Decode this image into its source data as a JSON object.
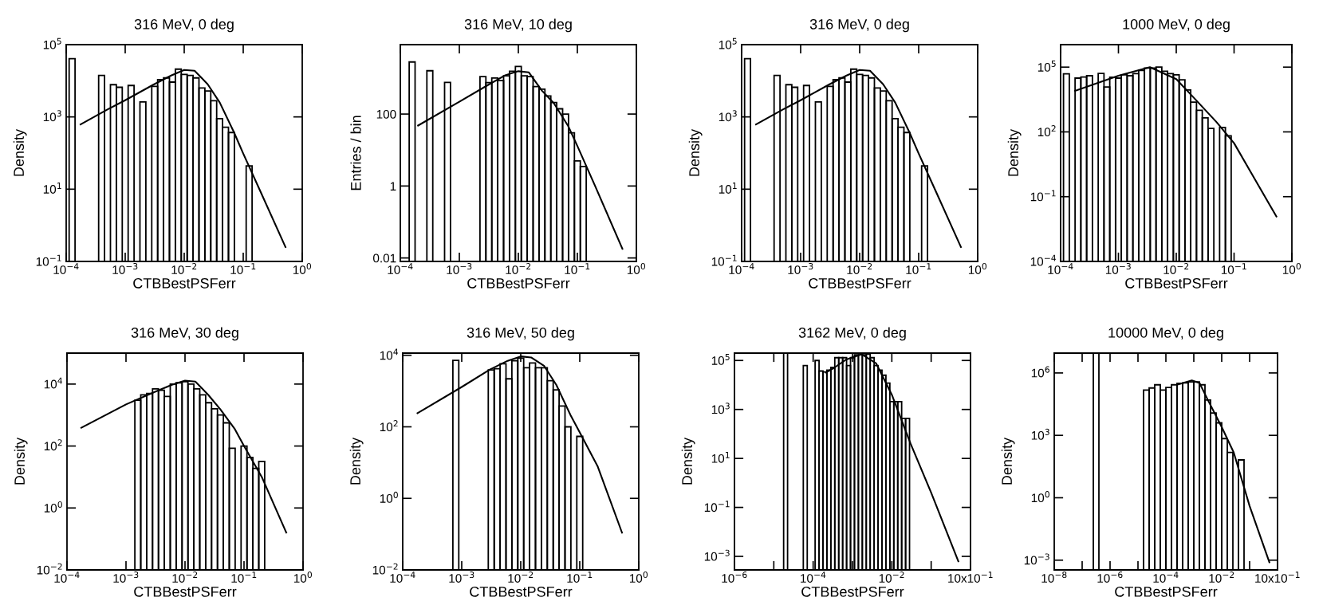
{
  "chart_data": [
    {
      "type": "histogram",
      "title": "316 MeV, 0 deg",
      "xlabel": "CTBBestPSFerr",
      "ylabel": "Density",
      "log": "xy",
      "grid": false,
      "color": "#000000",
      "xlim": [
        0.0001,
        1
      ],
      "ylim": [
        0.1,
        100000
      ],
      "xticks": [
        {
          "value": 0.0001,
          "label": "10$^{−4}$"
        },
        {
          "value": 0.001,
          "label": "10$^{−3}$"
        },
        {
          "value": 0.01,
          "label": "10$^{−2}$"
        },
        {
          "value": 0.1,
          "label": "10$^{−1}$"
        },
        {
          "value": 1,
          "label": "10$^{0}$"
        }
      ],
      "yticks": [
        {
          "value": 0.1,
          "label": "10$^{−1}$"
        },
        {
          "value": 10,
          "label": "10$^{1}$"
        },
        {
          "value": 1000,
          "label": "10$^{3}$"
        },
        {
          "value": 100000,
          "label": "10$^{5}$"
        }
      ],
      "bins": [
        0.0001122,
        0.0001413,
        0.0001778,
        0.0002239,
        0.0002818,
        0.0003548,
        0.0004467,
        0.0005623,
        0.0007079,
        0.0008913,
        0.001122,
        0.001413,
        0.001778,
        0.002239,
        0.002818,
        0.003548,
        0.004467,
        0.005623,
        0.007079,
        0.008913,
        0.01122,
        0.01413,
        0.01778,
        0.02239,
        0.02818,
        0.03548,
        0.04467,
        0.05623,
        0.07079,
        0.08913,
        0.1122,
        0.1413
      ],
      "values": [
        41000,
        null,
        null,
        null,
        null,
        14000,
        null,
        7800,
        6600,
        null,
        7400,
        null,
        2600,
        null,
        7000,
        10700,
        12000,
        9200,
        21000,
        15000,
        14000,
        12000,
        6300,
        5200,
        2800,
        890,
        520,
        370,
        null,
        null,
        44
      ],
      "series": [
        {
          "type": "line",
          "color": "#000000",
          "x": [
            0.000175,
            0.0005,
            0.001,
            0.003,
            0.006,
            0.01,
            0.015,
            0.025,
            0.04,
            0.07,
            0.1,
            0.2,
            0.52
          ],
          "values": [
            620,
            1600,
            2900,
            7800,
            14000,
            20000,
            19000,
            8000,
            2500,
            370,
            97,
            8,
            0.25
          ]
        }
      ]
    },
    {
      "type": "histogram",
      "title": "316 MeV, 10 deg",
      "xlabel": "CTBBestPSFerr",
      "ylabel": "Entries / bin",
      "log": "xy",
      "grid": false,
      "color": "#000000",
      "xlim": [
        0.0001,
        1
      ],
      "ylim": [
        0.008,
        8500
      ],
      "xticks": [
        {
          "value": 0.0001,
          "label": "10$^{−4}$"
        },
        {
          "value": 0.001,
          "label": "10$^{−3}$"
        },
        {
          "value": 0.01,
          "label": "10$^{−2}$"
        },
        {
          "value": 0.1,
          "label": "10$^{−1}$"
        },
        {
          "value": 1,
          "label": "10$^{0}$"
        }
      ],
      "yticks": [
        0.01,
        1,
        100
      ],
      "bins": [
        0.0001413,
        0.0001778,
        0.0002239,
        0.0002818,
        0.0003548,
        0.0004467,
        0.0005623,
        0.0007079,
        0.0008913,
        0.001122,
        0.001413,
        0.001778,
        0.002239,
        0.002818,
        0.003548,
        0.004467,
        0.005623,
        0.007079,
        0.008913,
        0.01122,
        0.01413,
        0.01778,
        0.02239,
        0.02818,
        0.03548,
        0.04467,
        0.05623,
        0.07079,
        0.08913,
        0.1122,
        0.1413
      ],
      "values": [
        2800,
        null,
        null,
        1600,
        null,
        null,
        760,
        null,
        null,
        null,
        null,
        null,
        1100,
        750,
        1000,
        850,
        1150,
        1550,
        2100,
        1150,
        1100,
        580,
        490,
        320,
        210,
        140,
        100,
        30,
        5,
        3.5
      ],
      "series": [
        {
          "type": "line",
          "color": "#000000",
          "x": [
            0.0002,
            0.001,
            0.003,
            0.006,
            0.01,
            0.015,
            0.025,
            0.04,
            0.07,
            0.1,
            0.2,
            0.58
          ],
          "values": [
            48,
            220,
            630,
            1200,
            1550,
            1450,
            450,
            200,
            46,
            13,
            1,
            0.018
          ]
        }
      ]
    },
    {
      "type": "histogram",
      "title": "316 MeV, 0 deg",
      "xlabel": "CTBBestPSFerr",
      "ylabel": "Density",
      "log": "xy",
      "grid": false,
      "color": "#000000",
      "xlim": [
        0.0001,
        1
      ],
      "ylim": [
        0.1,
        100000
      ],
      "xticks": [
        {
          "value": 0.0001,
          "label": "10$^{−4}$"
        },
        {
          "value": 0.001,
          "label": "10$^{−3}$"
        },
        {
          "value": 0.01,
          "label": "10$^{−2}$"
        },
        {
          "value": 0.1,
          "label": "10$^{−1}$"
        },
        {
          "value": 1,
          "label": "10$^{0}$"
        }
      ],
      "yticks": [
        {
          "value": 0.1,
          "label": "10$^{−1}$"
        },
        {
          "value": 10,
          "label": "10$^{1}$"
        },
        {
          "value": 1000,
          "label": "10$^{3}$"
        },
        {
          "value": 100000,
          "label": "10$^{5}$"
        }
      ],
      "bins": [
        0.0001122,
        0.0001413,
        0.0001778,
        0.0002239,
        0.0002818,
        0.0003548,
        0.0004467,
        0.0005623,
        0.0007079,
        0.0008913,
        0.001122,
        0.001413,
        0.001778,
        0.002239,
        0.002818,
        0.003548,
        0.004467,
        0.005623,
        0.007079,
        0.008913,
        0.01122,
        0.01413,
        0.01778,
        0.02239,
        0.02818,
        0.03548,
        0.04467,
        0.05623,
        0.07079,
        0.08913,
        0.1122,
        0.1413
      ],
      "values": [
        41000,
        null,
        null,
        null,
        null,
        14000,
        null,
        7800,
        6600,
        null,
        7400,
        null,
        2600,
        null,
        7000,
        10700,
        12000,
        9200,
        21000,
        15000,
        14000,
        12000,
        6300,
        5200,
        2800,
        890,
        520,
        370,
        null,
        null,
        44
      ],
      "series": [
        {
          "type": "line",
          "color": "#000000",
          "x": [
            0.000175,
            0.0005,
            0.001,
            0.003,
            0.006,
            0.01,
            0.015,
            0.025,
            0.04,
            0.07,
            0.1,
            0.2,
            0.52
          ],
          "values": [
            620,
            1600,
            2900,
            7800,
            14000,
            20000,
            19000,
            8000,
            2500,
            370,
            97,
            8,
            0.25
          ]
        }
      ]
    },
    {
      "type": "histogram",
      "title": "1000 MeV, 0 deg",
      "xlabel": "CTBBestPSFerr",
      "ylabel": "Density",
      "log": "xy",
      "grid": false,
      "color": "#000000",
      "xlim": [
        0.0001,
        1
      ],
      "ylim": [
        0.0001,
        1100000
      ],
      "xticks": [
        {
          "value": 0.0001,
          "label": "10$^{−4}$"
        },
        {
          "value": 0.001,
          "label": "10$^{−3}$"
        },
        {
          "value": 0.01,
          "label": "10$^{−2}$"
        },
        {
          "value": 0.1,
          "label": "10$^{−1}$"
        },
        {
          "value": 1,
          "label": "10$^{0}$"
        }
      ],
      "yticks": [
        {
          "value": 0.0001,
          "label": "10$^{−4}$"
        },
        {
          "value": 0.1,
          "label": "10$^{−1}$"
        },
        {
          "value": 100,
          "label": "10$^{2}$"
        },
        {
          "value": 100000,
          "label": "10$^{5}$"
        }
      ],
      "bins": [
        0.0001122,
        0.0001413,
        0.0001778,
        0.0002239,
        0.0002818,
        0.0003548,
        0.0004467,
        0.0005623,
        0.0007079,
        0.0008913,
        0.001122,
        0.001413,
        0.001778,
        0.002239,
        0.002818,
        0.003548,
        0.004467,
        0.005623,
        0.007079,
        0.008913,
        0.01122,
        0.01413,
        0.01778,
        0.02239,
        0.02818,
        0.03548,
        0.04467,
        0.05623,
        0.07079,
        0.08913
      ],
      "values": [
        49000,
        null,
        31000,
        35000,
        40000,
        null,
        51000,
        12000,
        34000,
        31000,
        44000,
        40000,
        50000,
        70000,
        90000,
        90000,
        100000,
        64000,
        50000,
        44000,
        26000,
        8700,
        2400,
        1000,
        450,
        145,
        null,
        160,
        66
      ],
      "series": [
        {
          "type": "line",
          "color": "#000000",
          "x": [
            0.000178,
            0.001,
            0.0035,
            0.01,
            0.02,
            0.05,
            0.1,
            0.2,
            0.54
          ],
          "values": [
            8000,
            40000,
            100000,
            28000,
            3900,
            280,
            30,
            1.2,
            0.012
          ]
        }
      ]
    },
    {
      "type": "histogram",
      "title": "316 MeV, 30 deg",
      "xlabel": "CTBBestPSFerr",
      "ylabel": "Density",
      "log": "xy",
      "grid": false,
      "color": "#000000",
      "xlim": [
        0.0001,
        1
      ],
      "ylim": [
        0.01,
        100000
      ],
      "xticks": [
        {
          "value": 0.0001,
          "label": "10$^{−4}$"
        },
        {
          "value": 0.001,
          "label": "10$^{−3}$"
        },
        {
          "value": 0.01,
          "label": "10$^{−2}$"
        },
        {
          "value": 0.1,
          "label": "10$^{−1}$"
        },
        {
          "value": 1,
          "label": "10$^{0}$"
        }
      ],
      "yticks": [
        {
          "value": 0.01,
          "label": "10$^{−2}$"
        },
        {
          "value": 1,
          "label": "10$^{0}$"
        },
        {
          "value": 100,
          "label": "10$^{2}$"
        },
        {
          "value": 10000,
          "label": "10$^{4}$"
        }
      ],
      "bins": [
        0.001413,
        0.001778,
        0.002239,
        0.002818,
        0.003548,
        0.004467,
        0.005623,
        0.007079,
        0.008913,
        0.01122,
        0.01413,
        0.01778,
        0.02239,
        0.02818,
        0.03548,
        0.04467,
        0.05623,
        0.07079,
        0.08913,
        0.1122,
        0.1413,
        0.1778,
        0.2239
      ],
      "values": [
        3000,
        4500,
        5000,
        7000,
        6300,
        4000,
        10000,
        11000,
        12000,
        10000,
        7000,
        4500,
        2500,
        1600,
        1000,
        560,
        85,
        null,
        100,
        43,
        19,
        32
      ],
      "series": [
        {
          "type": "line",
          "color": "#000000",
          "x": [
            0.000175,
            0.001,
            0.003,
            0.006,
            0.01,
            0.015,
            0.025,
            0.04,
            0.07,
            0.1,
            0.2,
            0.52
          ],
          "values": [
            390,
            2200,
            5500,
            9500,
            13000,
            12000,
            4400,
            1500,
            350,
            100,
            10,
            0.16
          ]
        }
      ]
    },
    {
      "type": "histogram",
      "title": "316 MeV, 50 deg",
      "xlabel": "CTBBestPSFerr",
      "ylabel": "Density",
      "log": "xy",
      "grid": false,
      "color": "#000000",
      "xlim": [
        0.0001,
        1
      ],
      "ylim": [
        0.01,
        11500
      ],
      "xticks": [
        {
          "value": 0.0001,
          "label": "10$^{−4}$"
        },
        {
          "value": 0.001,
          "label": "10$^{−3}$"
        },
        {
          "value": 0.01,
          "label": "10$^{−2}$"
        },
        {
          "value": 0.1,
          "label": "10$^{−1}$"
        },
        {
          "value": 1,
          "label": "10$^{0}$"
        }
      ],
      "yticks": [
        {
          "value": 0.01,
          "label": "10$^{−2}$"
        },
        {
          "value": 1,
          "label": "10$^{0}$"
        },
        {
          "value": 100,
          "label": "10$^{2}$"
        },
        {
          "value": 10000,
          "label": "10$^{4}$"
        }
      ],
      "bins": [
        0.0007079,
        0.0008913,
        0.001122,
        0.001413,
        0.001778,
        0.002239,
        0.002818,
        0.003548,
        0.004467,
        0.005623,
        0.007079,
        0.008913,
        0.01122,
        0.01413,
        0.01778,
        0.02239,
        0.02818,
        0.03548,
        0.04467,
        0.05623,
        0.07079,
        0.08913,
        0.1122
      ],
      "values": [
        7200,
        null,
        null,
        null,
        null,
        null,
        3900,
        4200,
        5800,
        2200,
        7000,
        8300,
        4500,
        6100,
        4500,
        4500,
        1950,
        1080,
        380,
        100,
        null,
        54
      ],
      "series": [
        {
          "type": "line",
          "color": "#000000",
          "x": [
            0.000178,
            0.001,
            0.003,
            0.006,
            0.01,
            0.015,
            0.025,
            0.04,
            0.07,
            0.1,
            0.2,
            0.52
          ],
          "values": [
            240,
            1300,
            4000,
            7000,
            9300,
            8700,
            5000,
            1500,
            210,
            70,
            8,
            0.11
          ]
        }
      ]
    },
    {
      "type": "histogram",
      "title": "3162 MeV, 0 deg",
      "xlabel": "CTBBestPSFerr",
      "ylabel": "Density",
      "log": "xy",
      "grid": false,
      "color": "#000000",
      "xlim": [
        1e-06,
        1
      ],
      "ylim": [
        0.00028,
        200000
      ],
      "xticks": [
        {
          "value": 1e-06,
          "label": "10$^{−6}$"
        },
        {
          "value": 1e-05,
          "label": null
        },
        {
          "value": 0.0001,
          "label": "10$^{−4}$"
        },
        {
          "value": 0.001,
          "label": null
        },
        {
          "value": 0.01,
          "label": "10$^{−2}$"
        },
        {
          "value": 0.1,
          "label": null
        },
        {
          "value": 1,
          "label": "10x10$^{−1}$"
        }
      ],
      "yticks": [
        {
          "value": 0.001,
          "label": "10$^{−3}$"
        },
        {
          "value": 0.1,
          "label": "10$^{−1}$"
        },
        {
          "value": 10,
          "label": "10$^{1}$"
        },
        {
          "value": 1000,
          "label": "10$^{3}$"
        },
        {
          "value": 100000,
          "label": "10$^{5}$"
        }
      ],
      "bins": [
        1.778e-05,
        2.239e-05,
        2.818e-05,
        3.548e-05,
        4.467e-05,
        5.623e-05,
        7.079e-05,
        8.913e-05,
        0.0001122,
        0.0001413,
        0.0001778,
        0.0002239,
        0.0002818,
        0.0003548,
        0.0004467,
        0.0005623,
        0.0007079,
        0.0008913,
        0.001122,
        0.001413,
        0.001778,
        0.002239,
        0.002818,
        0.003548,
        0.004467,
        0.005623,
        0.007079,
        0.008913,
        0.01122,
        0.01413,
        0.01778,
        0.02239,
        0.02818
      ],
      "values": [
        200000,
        null,
        null,
        null,
        null,
        62000,
        null,
        null,
        100000,
        37000,
        34000,
        40000,
        52000,
        130000,
        130000,
        130000,
        62000,
        130000,
        170000,
        170000,
        170000,
        180000,
        130000,
        62000,
        40000,
        25000,
        12000,
        2100,
        2100,
        2100,
        430,
        430
      ],
      "series": [
        {
          "type": "line",
          "color": "#000000",
          "x": [
            0.00021,
            0.00034,
            0.0007,
            0.0017,
            0.004,
            0.01,
            0.03,
            0.1,
            0.49
          ],
          "values": [
            32000,
            50000,
            110000,
            180000,
            76000,
            4000,
            40,
            0.4,
            0.00063
          ]
        }
      ]
    },
    {
      "type": "histogram",
      "title": "10000 MeV, 0 deg",
      "xlabel": "CTBBestPSFerr",
      "ylabel": "Density",
      "log": "xy",
      "grid": false,
      "color": "#000000",
      "xlim": [
        1e-08,
        1
      ],
      "ylim": [
        0.00034,
        9000000
      ],
      "xticks": [
        {
          "value": 1e-08,
          "label": "10$^{−8}$"
        },
        {
          "value": 1e-07,
          "label": null
        },
        {
          "value": 1e-06,
          "label": "10$^{−6}$"
        },
        {
          "value": 1e-05,
          "label": null
        },
        {
          "value": 0.0001,
          "label": "10$^{−4}$"
        },
        {
          "value": 0.001,
          "label": null
        },
        {
          "value": 0.01,
          "label": "10$^{−2}$"
        },
        {
          "value": 0.1,
          "label": null
        },
        {
          "value": 1,
          "label": "10x10$^{−1}$"
        }
      ],
      "yticks": [
        {
          "value": 0.001,
          "label": "10$^{−3}$"
        },
        {
          "value": 1,
          "label": "10$^{0}$"
        },
        {
          "value": 1000,
          "label": "10$^{3}$"
        },
        {
          "value": 1000000,
          "label": "10$^{6}$"
        }
      ],
      "bins": [
        2.512e-07,
        3.981e-07,
        6.31e-07,
        1e-06,
        1.585e-06,
        2.512e-06,
        3.981e-06,
        6.31e-06,
        1e-05,
        1.585e-05,
        2.512e-05,
        3.981e-05,
        6.31e-05,
        0.0001,
        0.0001585,
        0.0002512,
        0.0003981,
        0.000631,
        0.001,
        0.001585,
        0.002512,
        0.003981,
        0.00631,
        0.01,
        0.01585,
        0.02512,
        0.03981,
        0.0631
      ],
      "values": [
        9000000,
        null,
        null,
        null,
        null,
        null,
        null,
        null,
        null,
        150000,
        190000,
        270000,
        150000,
        200000,
        270000,
        320000,
        330000,
        370000,
        370000,
        270000,
        50000,
        12000,
        4000,
        700,
        150,
        null,
        66
      ],
      "series": [
        {
          "type": "line",
          "color": "#000000",
          "x": [
            0.00025,
            0.00085,
            0.0016,
            0.0032,
            0.01,
            0.027,
            0.1,
            0.51
          ],
          "values": [
            270000,
            440000,
            330000,
            50000,
            2500,
            150,
            0.4,
            0.0008
          ]
        }
      ]
    }
  ]
}
